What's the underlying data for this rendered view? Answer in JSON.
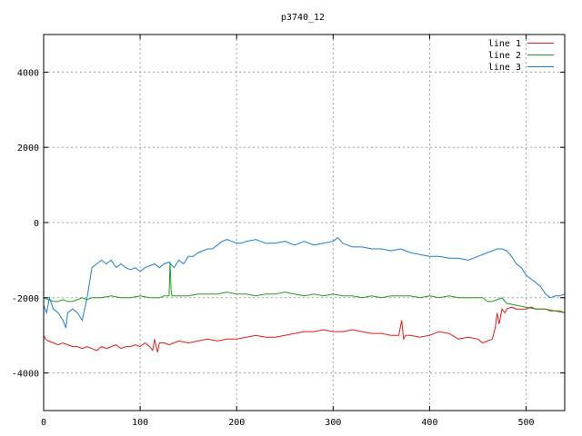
{
  "chart_data": {
    "type": "line",
    "title": "p3740_12",
    "xlabel": "",
    "ylabel": "",
    "xlim": [
      0,
      540
    ],
    "ylim": [
      -5000,
      5000
    ],
    "x_ticks": [
      0,
      100,
      200,
      300,
      400,
      500
    ],
    "y_ticks": [
      -4000,
      -2000,
      0,
      2000,
      4000
    ],
    "grid": true,
    "legend_position": "top-right",
    "series": [
      {
        "name": "line 1",
        "color": "#e41a1c",
        "x": [
          0,
          2,
          5,
          10,
          15,
          20,
          25,
          30,
          35,
          40,
          45,
          50,
          55,
          60,
          65,
          70,
          75,
          80,
          85,
          90,
          95,
          100,
          105,
          110,
          113,
          115,
          118,
          120,
          125,
          130,
          135,
          140,
          150,
          160,
          170,
          180,
          190,
          200,
          210,
          220,
          230,
          240,
          250,
          260,
          270,
          280,
          290,
          300,
          310,
          320,
          330,
          340,
          350,
          360,
          368,
          371,
          373,
          375,
          380,
          390,
          400,
          410,
          420,
          430,
          440,
          450,
          455,
          460,
          465,
          468,
          470,
          472,
          475,
          478,
          480,
          485,
          490,
          495,
          500,
          505,
          510,
          515,
          520,
          525,
          530,
          535,
          540
        ],
        "values": [
          -3000,
          -3100,
          -3150,
          -3200,
          -3250,
          -3200,
          -3250,
          -3300,
          -3300,
          -3350,
          -3300,
          -3350,
          -3400,
          -3300,
          -3350,
          -3300,
          -3250,
          -3350,
          -3300,
          -3300,
          -3250,
          -3300,
          -3200,
          -3300,
          -3400,
          -3100,
          -3450,
          -3200,
          -3200,
          -3250,
          -3200,
          -3150,
          -3200,
          -3150,
          -3100,
          -3150,
          -3100,
          -3100,
          -3050,
          -3000,
          -3050,
          -3050,
          -3000,
          -2950,
          -2900,
          -2900,
          -2850,
          -2900,
          -2900,
          -2850,
          -2900,
          -2950,
          -2950,
          -3000,
          -3000,
          -2600,
          -3100,
          -3000,
          -3000,
          -3050,
          -3000,
          -2900,
          -2950,
          -3100,
          -3050,
          -3100,
          -3200,
          -3150,
          -3100,
          -2800,
          -2400,
          -2700,
          -2300,
          -2400,
          -2300,
          -2250,
          -2300,
          -2300,
          -2300,
          -2250,
          -2300,
          -2300,
          -2300,
          -2350,
          -2350,
          -2350,
          -2400
        ]
      },
      {
        "name": "line 2",
        "color": "#1e9e1e",
        "x": [
          0,
          5,
          10,
          15,
          20,
          25,
          30,
          35,
          40,
          45,
          50,
          60,
          70,
          80,
          90,
          100,
          110,
          120,
          125,
          128,
          130,
          131,
          132,
          133,
          135,
          140,
          150,
          160,
          170,
          180,
          190,
          200,
          210,
          220,
          230,
          240,
          250,
          260,
          270,
          280,
          290,
          300,
          310,
          320,
          330,
          340,
          350,
          360,
          370,
          380,
          390,
          400,
          410,
          420,
          430,
          440,
          450,
          455,
          460,
          465,
          470,
          475,
          480,
          490,
          500,
          510,
          520,
          530,
          540
        ],
        "values": [
          -2000,
          -2050,
          -2100,
          -2100,
          -2050,
          -2100,
          -2100,
          -2050,
          -2000,
          -2050,
          -2000,
          -2000,
          -1950,
          -2000,
          -2000,
          -1950,
          -2000,
          -2000,
          -1950,
          -1950,
          -1950,
          -1050,
          -1800,
          -1950,
          -1950,
          -1950,
          -1950,
          -1900,
          -1900,
          -1900,
          -1850,
          -1900,
          -1900,
          -1950,
          -1900,
          -1900,
          -1850,
          -1900,
          -1950,
          -1900,
          -1950,
          -1900,
          -1950,
          -1950,
          -2000,
          -1950,
          -2000,
          -1950,
          -1950,
          -1950,
          -2000,
          -1950,
          -2000,
          -1950,
          -2000,
          -2000,
          -2000,
          -2000,
          -2100,
          -2100,
          -2050,
          -2000,
          -2150,
          -2200,
          -2250,
          -2300,
          -2300,
          -2350,
          -2400
        ]
      },
      {
        "name": "line 3",
        "color": "#1a7fd4",
        "x": [
          0,
          3,
          6,
          10,
          15,
          20,
          23,
          25,
          30,
          35,
          40,
          45,
          50,
          55,
          60,
          65,
          70,
          75,
          80,
          85,
          90,
          95,
          100,
          105,
          110,
          115,
          120,
          125,
          130,
          135,
          140,
          145,
          150,
          155,
          160,
          165,
          170,
          175,
          180,
          185,
          190,
          195,
          200,
          205,
          210,
          220,
          230,
          240,
          250,
          260,
          270,
          280,
          290,
          300,
          305,
          310,
          320,
          330,
          340,
          350,
          360,
          370,
          380,
          390,
          400,
          410,
          420,
          430,
          440,
          450,
          460,
          465,
          470,
          475,
          480,
          485,
          490,
          495,
          500,
          505,
          510,
          515,
          520,
          525,
          530,
          535,
          540
        ],
        "values": [
          -2200,
          -2400,
          -2000,
          -2300,
          -2400,
          -2600,
          -2800,
          -2400,
          -2300,
          -2400,
          -2600,
          -2000,
          -1200,
          -1100,
          -1000,
          -1100,
          -1000,
          -1200,
          -1100,
          -1200,
          -1250,
          -1200,
          -1300,
          -1200,
          -1150,
          -1100,
          -1200,
          -1100,
          -1050,
          -1200,
          -1000,
          -1100,
          -900,
          -900,
          -800,
          -750,
          -700,
          -700,
          -600,
          -500,
          -450,
          -500,
          -550,
          -550,
          -500,
          -450,
          -550,
          -550,
          -500,
          -600,
          -500,
          -600,
          -550,
          -500,
          -400,
          -550,
          -650,
          -650,
          -700,
          -700,
          -750,
          -700,
          -800,
          -850,
          -900,
          -900,
          -950,
          -950,
          -1000,
          -900,
          -800,
          -750,
          -700,
          -700,
          -750,
          -900,
          -1100,
          -1200,
          -1400,
          -1500,
          -1600,
          -1700,
          -1900,
          -2000,
          -1950,
          -1950,
          -1900
        ]
      }
    ]
  }
}
